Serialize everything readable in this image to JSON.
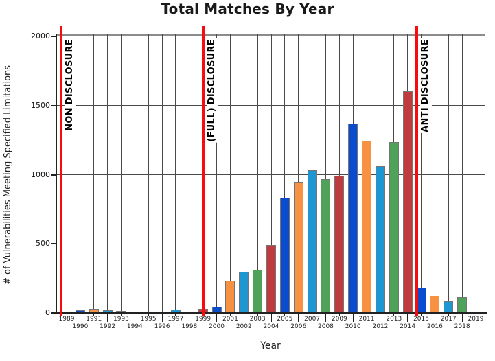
{
  "chart_data": {
    "type": "bar",
    "title": "Total Matches By Year",
    "xlabel": "Year",
    "ylabel": "# of Vulnerabilities Meeting Specified Limitations",
    "categories": [
      1989,
      1990,
      1991,
      1992,
      1993,
      1994,
      1995,
      1996,
      1997,
      1998,
      1999,
      2000,
      2001,
      2002,
      2003,
      2004,
      2005,
      2006,
      2007,
      2008,
      2009,
      2010,
      2011,
      2012,
      2013,
      2014,
      2015,
      2016,
      2017,
      2018,
      2019
    ],
    "values": [
      5,
      20,
      28,
      18,
      15,
      4,
      6,
      12,
      24,
      4,
      32,
      45,
      235,
      298,
      313,
      493,
      833,
      950,
      1030,
      970,
      995,
      1368,
      1248,
      1060,
      1235,
      1605,
      185,
      125,
      85,
      113,
      3
    ],
    "ylim": [
      0,
      2000
    ],
    "y_ticks": [
      0,
      500,
      1000,
      1500,
      2000
    ],
    "grid": true,
    "legend": "none",
    "bar_color_cycle": [
      "#0a4ccf",
      "#f89243",
      "#1e96d2",
      "#4fa25a",
      "#bf3b3d"
    ],
    "bar_border_color": "#757575",
    "annotations": [
      {
        "text": "NON DISCLOSURE",
        "line_x_year": 1988.6,
        "line_color": "#fa0a0a"
      },
      {
        "text": "(FULL) DISCLOSURE",
        "line_x_year": 1999.0,
        "line_color": "#fa0a0a"
      },
      {
        "text": "ANTI DISCLOSURE",
        "line_x_year": 2014.65,
        "line_color": "#fa0a0a"
      }
    ]
  }
}
